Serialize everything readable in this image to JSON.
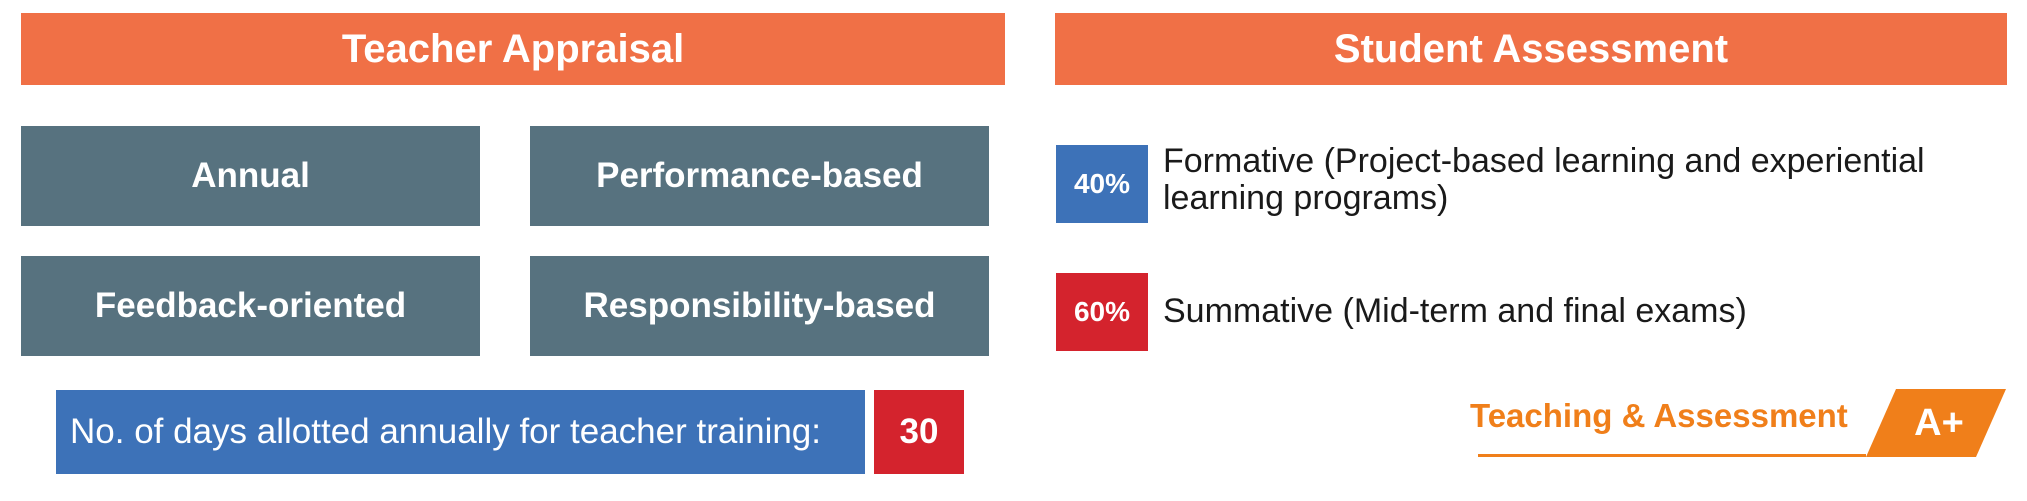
{
  "teacher_appraisal": {
    "header": "Teacher Appraisal",
    "tiles": [
      "Annual",
      "Performance-based",
      "Feedback-oriented",
      "Responsibility-based"
    ],
    "training_label": "No. of days allotted annually for teacher training:",
    "training_days": "30"
  },
  "student_assessment": {
    "header": "Student Assessment",
    "items": [
      {
        "percent": "40%",
        "text": "Formative (Project-based learning and experiential learning programs)",
        "color": "#3d72b8"
      },
      {
        "percent": "60%",
        "text": "Summative (Mid-term and final exams)",
        "color": "#d4232d"
      }
    ]
  },
  "logo": {
    "text": "Teaching & Assessment",
    "grade": "A+",
    "color": "#f07f1a"
  },
  "colors": {
    "header": "#f07046",
    "tile": "#57727f"
  }
}
